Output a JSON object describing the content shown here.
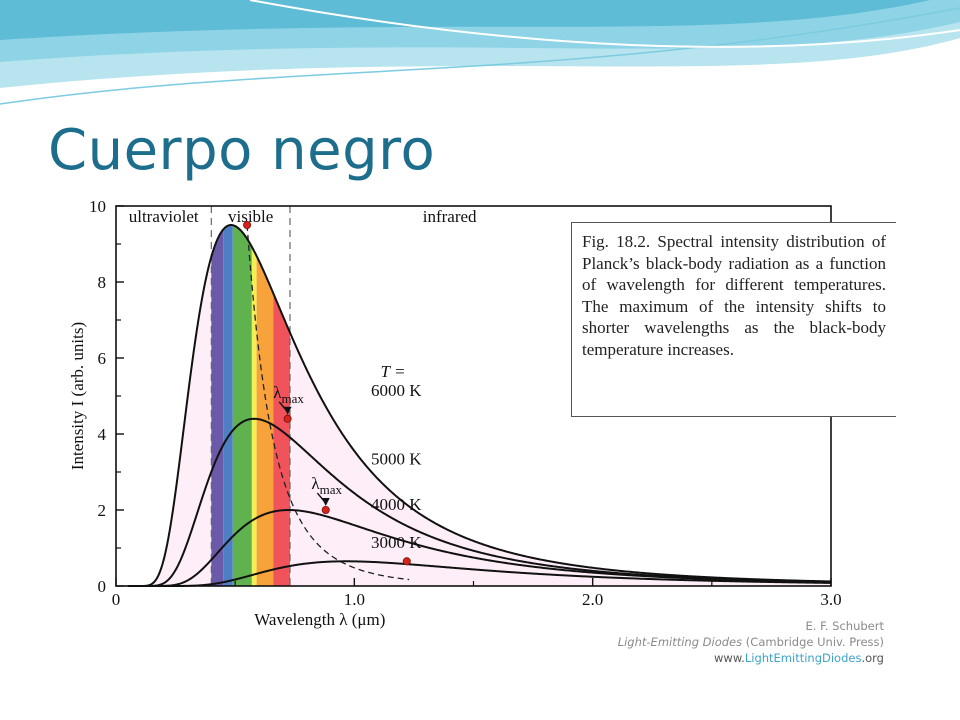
{
  "slide": {
    "title": "Cuerpo negro"
  },
  "theme": {
    "title_color": "#1d6e8c",
    "swoosh_color": "#8ed3e6"
  },
  "chart_data": {
    "type": "line",
    "xlabel": "Wavelength",
    "xlabel_symbol": "λ",
    "xlabel_unit": "(μm)",
    "ylabel": "Intensity",
    "ylabel_symbol": "I",
    "ylabel_unit": "(arb. units)",
    "xlim": [
      0,
      3.0
    ],
    "ylim": [
      0,
      10
    ],
    "x_ticks": [
      "0",
      "1.0",
      "2.0",
      "3.0"
    ],
    "y_ticks": [
      "0",
      "2",
      "4",
      "6",
      "8",
      "10"
    ],
    "regions": [
      {
        "label": "ultraviolet",
        "x_end": 0.4
      },
      {
        "label": "visible",
        "x_start": 0.4,
        "x_end": 0.73
      },
      {
        "label": "infrared",
        "x_start": 0.73
      }
    ],
    "spectrum_bands": [
      {
        "x": [
          0.4,
          0.45
        ],
        "color": "#6a5aa8"
      },
      {
        "x": [
          0.45,
          0.49
        ],
        "color": "#4e7fc4"
      },
      {
        "x": [
          0.49,
          0.57
        ],
        "color": "#5fb24e"
      },
      {
        "x": [
          0.57,
          0.59
        ],
        "color": "#f4ee55"
      },
      {
        "x": [
          0.59,
          0.66
        ],
        "color": "#f7a23a"
      },
      {
        "x": [
          0.66,
          0.73
        ],
        "color": "#f0535a"
      }
    ],
    "temperature_label": "T =",
    "series": [
      {
        "name": "6000 K",
        "temperature": 6000,
        "peak_x": 0.55,
        "peak_y": 9.5
      },
      {
        "name": "5000 K",
        "temperature": 5000,
        "peak_x": 0.72,
        "peak_y": 4.4
      },
      {
        "name": "4000 K",
        "temperature": 4000,
        "peak_x": 0.88,
        "peak_y": 2.0
      },
      {
        "name": "3000 K",
        "temperature": 3000,
        "peak_x": 1.22,
        "peak_y": 0.65
      }
    ],
    "annotations": [
      {
        "text": "λ",
        "subscript": "max",
        "near_series": "5000 K"
      },
      {
        "text": "λ",
        "subscript": "max",
        "near_series": "4000 K"
      }
    ],
    "caption": "Fig. 18.2. Spectral intensity distribution of Planck’s black-body radiation as a function of wavelength for different temperatures. The maximum of the intensity shifts to shorter wavelengths as the black-body temperature increases.",
    "credits": {
      "author": "E. F. Schubert",
      "book_title": "Light-Emitting Diodes",
      "book_publisher": "(Cambridge Univ. Press)",
      "url_prefix": "www.",
      "url_highlight": "LightEmittingDiodes",
      "url_suffix": ".org"
    }
  }
}
